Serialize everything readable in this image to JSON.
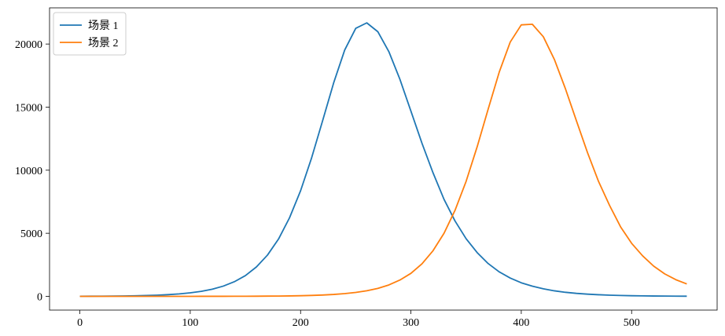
{
  "chart_data": {
    "type": "line",
    "x": [
      0,
      10,
      20,
      30,
      40,
      50,
      60,
      70,
      80,
      90,
      100,
      110,
      120,
      130,
      140,
      150,
      160,
      170,
      180,
      190,
      200,
      210,
      220,
      230,
      240,
      250,
      260,
      270,
      280,
      290,
      300,
      310,
      320,
      330,
      340,
      350,
      360,
      370,
      380,
      390,
      400,
      410,
      420,
      430,
      440,
      450,
      460,
      470,
      480,
      490,
      500,
      510,
      520,
      530,
      540,
      550
    ],
    "series": [
      {
        "name": "场景 1",
        "color": "#1f77b4",
        "values": [
          7,
          11,
          15,
          22,
          31,
          45,
          65,
          93,
          134,
          193,
          277,
          398,
          566,
          812,
          1160,
          1645,
          2333,
          3270,
          4540,
          6230,
          8370,
          10980,
          13930,
          16930,
          19530,
          21250,
          21680,
          20980,
          19400,
          17210,
          14680,
          12140,
          9800,
          7690,
          5970,
          4570,
          3470,
          2600,
          1940,
          1450,
          1075,
          807,
          597,
          438,
          321,
          236,
          173,
          128,
          94,
          69,
          51,
          37,
          27,
          20,
          15,
          11
        ]
      },
      {
        "name": "场景 2",
        "color": "#ff7f0e",
        "values": [
          0,
          0,
          0,
          0,
          0,
          0,
          0,
          0,
          0,
          0,
          1,
          2,
          3,
          4,
          6,
          8,
          12,
          17,
          24,
          35,
          50,
          72,
          104,
          150,
          215,
          310,
          441,
          632,
          903,
          1291,
          1823,
          2580,
          3615,
          5000,
          6825,
          9115,
          11850,
          14840,
          17770,
          20160,
          21520,
          21570,
          20580,
          18780,
          16460,
          13910,
          11400,
          9115,
          7210,
          5510,
          4205,
          3210,
          2395,
          1780,
          1323,
          982
        ]
      }
    ],
    "xlim": [
      -27.5,
      577.5
    ],
    "xticks": [
      0,
      100,
      200,
      300,
      400,
      500
    ],
    "ylim": [
      -1090,
      22870
    ],
    "yticks": [
      0,
      5000,
      10000,
      15000,
      20000
    ],
    "grid": false,
    "legend": "upper left"
  }
}
